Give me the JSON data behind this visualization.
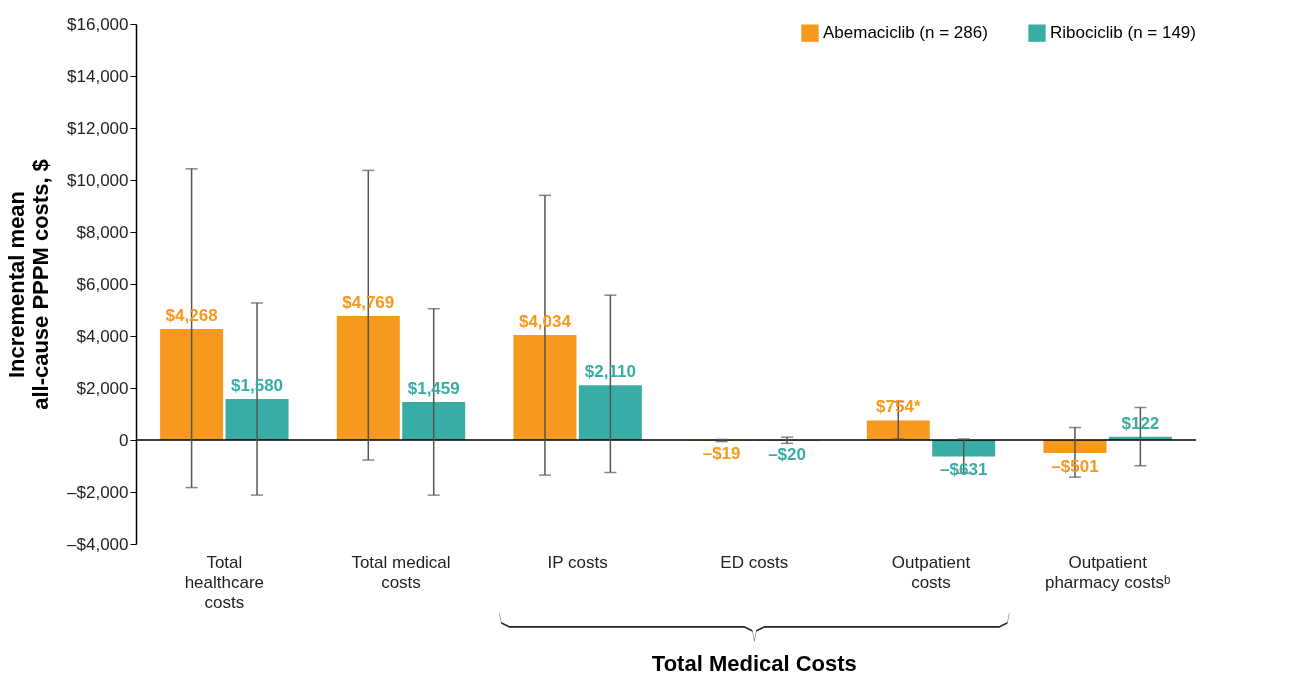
{
  "chart_data": {
    "type": "bar",
    "ylabel": "Incremental mean\nall-cause PPPM costs, $",
    "categories": [
      "Total\nhealthcare\ncosts",
      "Total medical\ncosts",
      "IP costs",
      "ED costs",
      "Outpatient\ncosts",
      "Outpatient\npharmacy costsᵇ"
    ],
    "series": [
      {
        "name": "Abemaciclib (n = 286)",
        "color": "#f7991d",
        "values": [
          4268,
          4769,
          4034,
          -19,
          754,
          -501
        ],
        "value_labels": [
          "$4,268",
          "$4,769",
          "$4,034",
          "–$19",
          "$754*",
          "–$501"
        ],
        "errors": [
          [
            -1830,
            10430
          ],
          [
            -770,
            10370
          ],
          [
            -1350,
            9410
          ],
          [
            -60,
            20
          ],
          [
            40,
            1470
          ],
          [
            -1430,
            480
          ]
        ]
      },
      {
        "name": "Ribociclib (n = 149)",
        "color": "#38ada5",
        "values": [
          1580,
          1459,
          2110,
          -20,
          -631,
          122
        ],
        "value_labels": [
          "$1,580",
          "$1,459",
          "$2,110",
          "–$20",
          "–$631",
          "$122"
        ],
        "errors": [
          [
            -2120,
            5270
          ],
          [
            -2120,
            5050
          ],
          [
            -1250,
            5570
          ],
          [
            -130,
            110
          ],
          [
            -1280,
            40
          ],
          [
            -990,
            1250
          ]
        ]
      }
    ],
    "ylim": [
      -4000,
      16000
    ],
    "yticks": [
      {
        "value": -4000,
        "label": "–$4,000"
      },
      {
        "value": -2000,
        "label": "–$2,000"
      },
      {
        "value": 0,
        "label": "0"
      },
      {
        "value": 2000,
        "label": "$2,000"
      },
      {
        "value": 4000,
        "label": "$4,000"
      },
      {
        "value": 6000,
        "label": "$6,000"
      },
      {
        "value": 8000,
        "label": "$8,000"
      },
      {
        "value": 10000,
        "label": "$10,000"
      },
      {
        "value": 12000,
        "label": "$12,000"
      },
      {
        "value": 14000,
        "label": "$14,000"
      },
      {
        "value": 16000,
        "label": "$16,000"
      }
    ],
    "grid": false,
    "ref_lines": [
      {
        "axis": "y",
        "value": 0,
        "color": "#000000"
      }
    ],
    "legend": "top right",
    "annotations": [
      "Total Medical Costs"
    ]
  }
}
